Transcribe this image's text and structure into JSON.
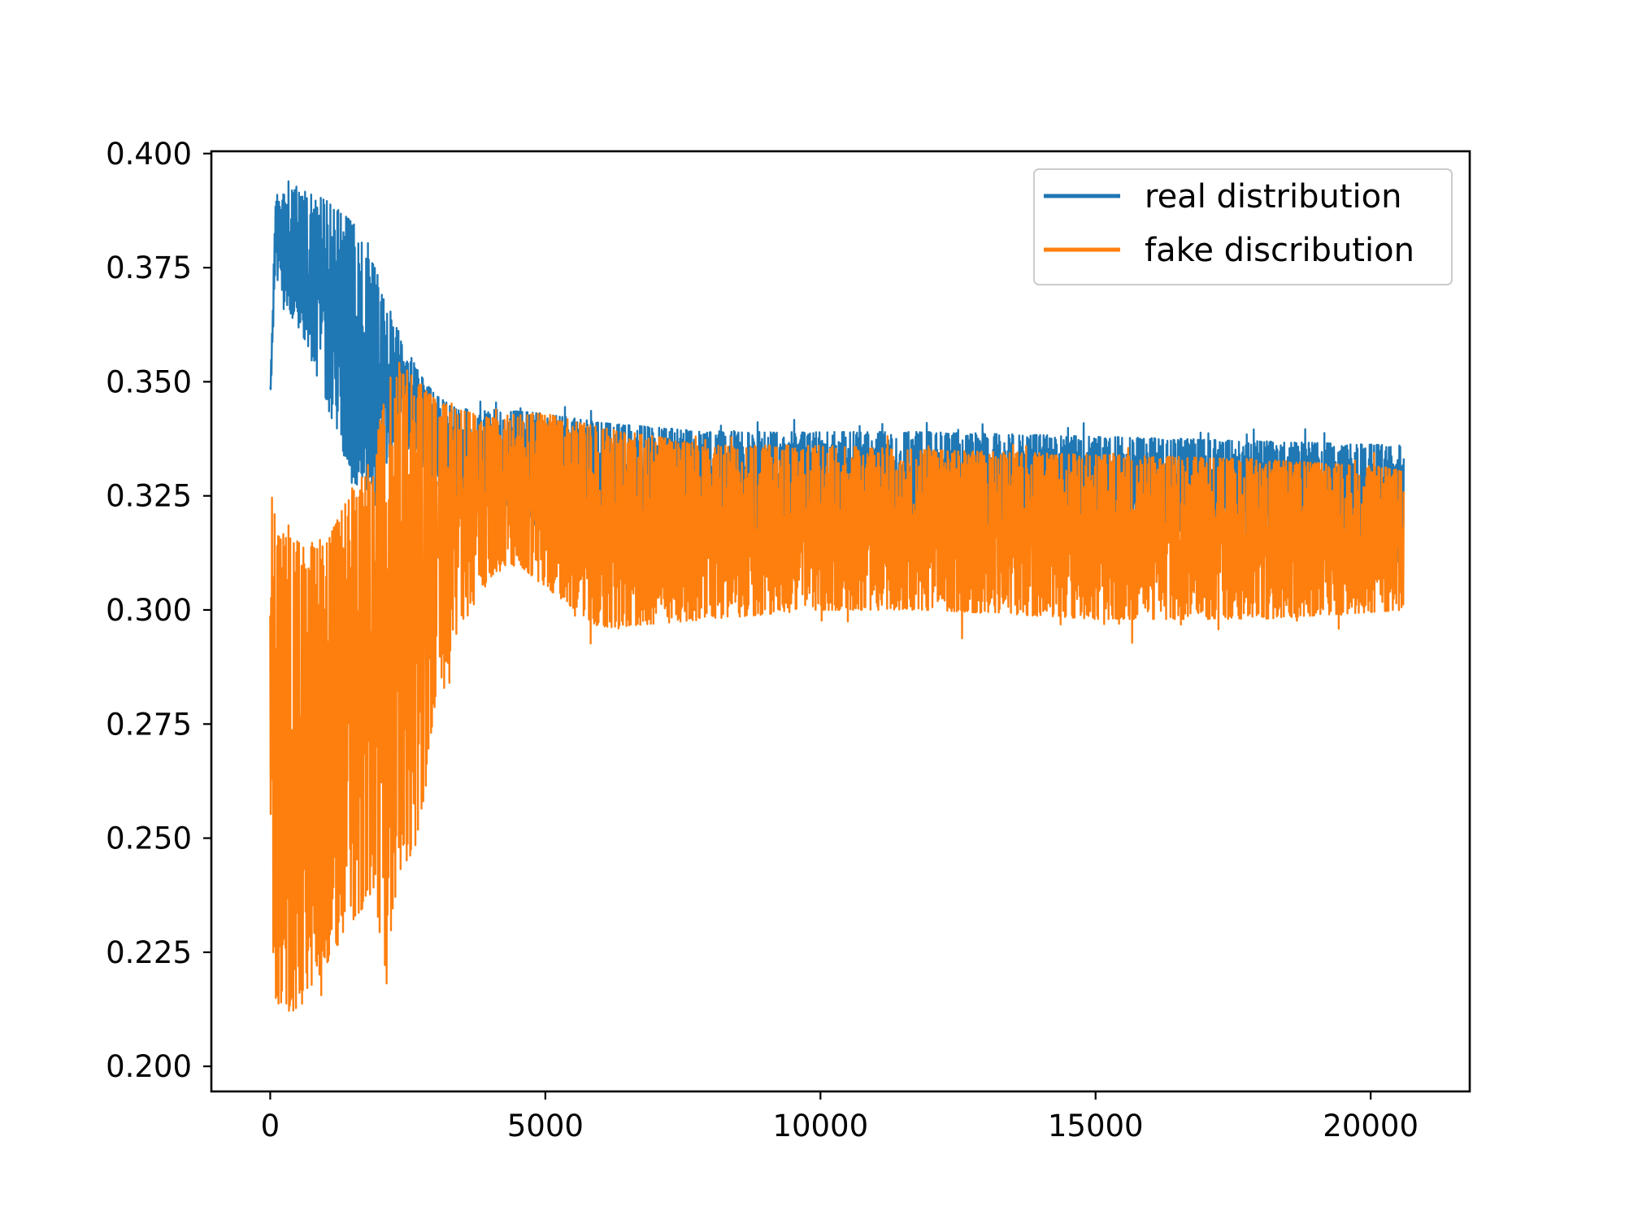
{
  "chart_data": {
    "type": "line",
    "title": "",
    "xlabel": "",
    "ylabel": "",
    "xlim": [
      -1070,
      21800
    ],
    "ylim": [
      0.1945,
      0.4005
    ],
    "x_ticks": [
      0,
      5000,
      10000,
      15000,
      20000
    ],
    "x_tick_labels": [
      "0",
      "5000",
      "10000",
      "15000",
      "20000"
    ],
    "y_ticks": [
      0.2,
      0.225,
      0.25,
      0.275,
      0.3,
      0.325,
      0.35,
      0.375,
      0.4
    ],
    "y_tick_labels": [
      "0.200",
      "0.225",
      "0.250",
      "0.275",
      "0.300",
      "0.325",
      "0.350",
      "0.375",
      "0.400"
    ],
    "grid": false,
    "legend_position": "top-right",
    "series": [
      {
        "name": "real distribution",
        "color": "#1f77b4",
        "envelope": {
          "x": [
            0,
            100,
            300,
            600,
            1000,
            1500,
            1900,
            2300,
            2700,
            3000,
            3400,
            4000,
            5000,
            6000,
            8000,
            10000,
            12000,
            15000,
            18000,
            20600
          ],
          "upper": [
            0.35,
            0.391,
            0.392,
            0.392,
            0.39,
            0.385,
            0.375,
            0.362,
            0.352,
            0.347,
            0.344,
            0.344,
            0.343,
            0.341,
            0.339,
            0.339,
            0.339,
            0.338,
            0.337,
            0.336
          ],
          "lower": [
            0.345,
            0.372,
            0.366,
            0.36,
            0.346,
            0.328,
            0.325,
            0.338,
            0.333,
            0.328,
            0.323,
            0.32,
            0.318,
            0.317,
            0.316,
            0.316,
            0.316,
            0.316,
            0.316,
            0.31
          ]
        }
      },
      {
        "name": "fake discribution",
        "color": "#ff7f0e",
        "envelope": {
          "x": [
            0,
            100,
            300,
            600,
            1000,
            1500,
            1900,
            2100,
            2300,
            2700,
            3000,
            3400,
            4000,
            4500,
            5000,
            6000,
            8000,
            10000,
            12000,
            15000,
            18000,
            20600
          ],
          "upper": [
            0.34,
            0.316,
            0.317,
            0.314,
            0.314,
            0.327,
            0.335,
            0.352,
            0.355,
            0.35,
            0.346,
            0.344,
            0.342,
            0.343,
            0.343,
            0.34,
            0.336,
            0.336,
            0.335,
            0.334,
            0.333,
            0.331
          ],
          "lower": [
            0.235,
            0.215,
            0.21,
            0.214,
            0.222,
            0.232,
            0.238,
            0.218,
            0.24,
            0.25,
            0.28,
            0.295,
            0.307,
            0.31,
            0.305,
            0.296,
            0.298,
            0.3,
            0.3,
            0.298,
            0.298,
            0.3
          ]
        }
      }
    ]
  }
}
